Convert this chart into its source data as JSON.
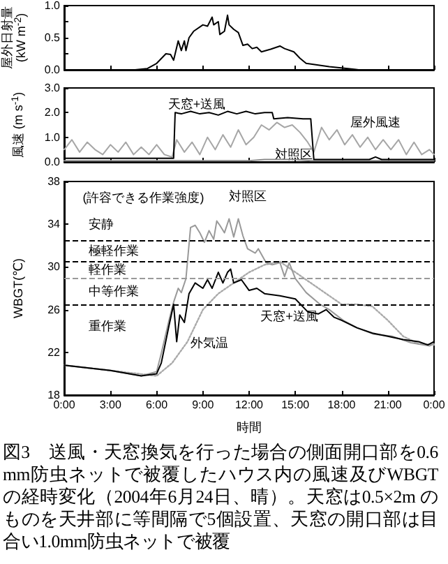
{
  "chart_data": [
    {
      "type": "line",
      "ylabel": "屋外日射量\n(kW m$^{-2}$)",
      "xlim": [
        0,
        24
      ],
      "xticks": [
        0,
        3,
        6,
        9,
        12,
        15,
        18,
        21,
        24
      ],
      "ylim": [
        0,
        1
      ],
      "yticks": [
        {
          "value": 0,
          "label": "0.0"
        },
        {
          "value": 0.25,
          "label": null
        },
        {
          "value": 0.5,
          "label": "0.5"
        },
        {
          "value": 0.75,
          "label": null
        },
        {
          "value": 1,
          "label": "1.0"
        }
      ],
      "tick_labels": "y",
      "grid": false,
      "legend": false,
      "marker": "none",
      "series": [
        {
          "color": "#000000",
          "x": [
            0,
            4.6,
            5.4,
            6.0,
            6.6,
            6.9,
            7.1,
            7.4,
            7.6,
            7.8,
            7.9,
            8.1,
            8.4,
            9.0,
            9.3,
            9.6,
            9.7,
            10.0,
            10.1,
            10.4,
            10.6,
            10.7,
            11.0,
            11.3,
            11.6,
            11.9,
            12.2,
            12.5,
            12.8,
            13.4,
            14.0,
            14.3,
            14.9,
            15.3,
            15.7,
            17.2,
            18.4,
            19.1,
            24
          ],
          "values": [
            0,
            0,
            0.02,
            0.1,
            0.25,
            0.24,
            0.15,
            0.45,
            0.3,
            0.45,
            0.3,
            0.5,
            0.6,
            0.7,
            0.68,
            0.82,
            0.7,
            0.75,
            0.55,
            0.6,
            0.85,
            0.7,
            0.63,
            0.58,
            0.38,
            0.4,
            0.33,
            0.35,
            0.28,
            0.32,
            0.37,
            0.33,
            0.28,
            0.18,
            0.1,
            0.05,
            0.02,
            0,
            0
          ]
        }
      ]
    },
    {
      "type": "line",
      "ylabel": "風速 (m s$^{-1}$)",
      "xlim": [
        0,
        24
      ],
      "xticks": [
        0,
        3,
        6,
        9,
        12,
        15,
        18,
        21,
        24
      ],
      "ylim": [
        0,
        3
      ],
      "yticks": [
        {
          "value": 0,
          "label": "0.0"
        },
        {
          "value": 1,
          "label": "1.0"
        },
        {
          "value": 2,
          "label": "2.0"
        },
        {
          "value": 3,
          "label": "3.0"
        }
      ],
      "tick_labels": "y",
      "grid": false,
      "legend": false,
      "marker": "none",
      "series": [
        {
          "name": "屋外風速",
          "color": "#a6a6a6",
          "x": [
            0,
            0.5,
            1,
            1.5,
            2,
            2.5,
            3,
            3.5,
            4,
            4.5,
            5,
            5.5,
            6,
            6.5,
            7,
            7.3,
            7.8,
            8.3,
            8.8,
            9.3,
            9.8,
            10.3,
            10.8,
            11.3,
            11.8,
            12.3,
            12.8,
            13.3,
            13.8,
            14.3,
            14.8,
            15.3,
            15.8,
            16.2,
            16.7,
            17.2,
            17.7,
            18.2,
            18.7,
            19.2,
            19.7,
            20.2,
            20.7,
            21.2,
            21.7,
            22.2,
            22.7,
            23.2,
            23.7,
            24
          ],
          "values": [
            0.5,
            0.9,
            0.4,
            0.8,
            0.5,
            0.3,
            0.7,
            0.4,
            0.8,
            0.3,
            0.6,
            0.3,
            0.7,
            0.3,
            0.2,
            0.9,
            0.4,
            0.8,
            0.3,
            1.0,
            0.5,
            1.1,
            0.6,
            1.3,
            0.7,
            1.0,
            1.5,
            1.3,
            1.6,
            1.4,
            1.5,
            1.2,
            0.8,
            0.4,
            1.4,
            0.9,
            1.3,
            0.7,
            1.1,
            0.6,
            1.0,
            0.5,
            0.9,
            0.5,
            0.9,
            0.3,
            0.8,
            0.3,
            0.5,
            0.3
          ]
        },
        {
          "name": "対照区",
          "color": "#8c8c8c",
          "x": [
            0,
            6,
            9,
            12,
            13,
            15,
            16,
            18,
            21,
            24
          ],
          "values": [
            0.05,
            0.05,
            0.05,
            0.05,
            0.1,
            0.1,
            0.05,
            0.05,
            0.05,
            0.05
          ]
        },
        {
          "name": "天窓+送風",
          "color": "#000000",
          "x": [
            0,
            7.1,
            7.2,
            7.6,
            8.2,
            8.8,
            9.4,
            10.0,
            10.6,
            11.2,
            11.8,
            12.4,
            13.0,
            13.5,
            13.6,
            14.5,
            15.5,
            16.0,
            16.2,
            18,
            19.8,
            20.2,
            20.6,
            24
          ],
          "values": [
            0.15,
            0.15,
            2.0,
            1.95,
            2.05,
            1.95,
            2.0,
            1.9,
            2.05,
            1.95,
            2.05,
            1.95,
            2.0,
            2.0,
            1.75,
            1.8,
            1.75,
            1.75,
            0.1,
            0.1,
            0.1,
            0.2,
            0.1,
            0.1
          ]
        }
      ]
    },
    {
      "type": "line",
      "xlabel": "時間",
      "ylabel": "WBGT(℃)",
      "xlim": [
        0,
        24
      ],
      "xticks": [
        {
          "value": 0,
          "label": "0:00"
        },
        {
          "value": 3,
          "label": "3:00"
        },
        {
          "value": 6,
          "label": "6:00"
        },
        {
          "value": 9,
          "label": "9:00"
        },
        {
          "value": 12,
          "label": "12:00"
        },
        {
          "value": 15,
          "label": "15:00"
        },
        {
          "value": 18,
          "label": "18:00"
        },
        {
          "value": 21,
          "label": "21:00"
        },
        {
          "value": 24,
          "label": "0:00"
        }
      ],
      "ylim": [
        18,
        38
      ],
      "yticks": [
        18,
        22,
        26,
        30,
        34,
        38
      ],
      "grid": false,
      "legend": false,
      "marker": "none",
      "ref_lines": [
        {
          "axis": "y",
          "value": 32.5,
          "color": "#000000",
          "line_style": "dashed"
        },
        {
          "axis": "y",
          "value": 30.5,
          "color": "#000000",
          "line_style": "dashed"
        },
        {
          "axis": "y",
          "value": 29.0,
          "color": "#999999",
          "line_style": "dashed"
        },
        {
          "axis": "y",
          "value": 26.5,
          "color": "#000000",
          "line_style": "dashed"
        }
      ],
      "annotations": [
        "(許容できる作業強度)",
        "安静",
        "極軽作業",
        "軽作業",
        "中等作業",
        "重作業",
        "図3　送風・天窓換気を行った場合の側面開口部を0.6 mm防虫ネットで被覆したハウス内の風速及びWBGTの経時変化（2004年6月24日、晴）。天窓は0.5×2m のものを天井部に等間隔で5個設置、天窓の開口部は目合い1.0mm防虫ネットで被覆"
      ],
      "series": [
        {
          "name": "外気温",
          "color": "#aaaaaa",
          "line_style": "dotted",
          "x": [
            0,
            3,
            6,
            7,
            8,
            9,
            10,
            11,
            12,
            13,
            14,
            15,
            16,
            17,
            18,
            19,
            20,
            21,
            22,
            23,
            24
          ],
          "values": [
            20.8,
            20.3,
            19.8,
            21.0,
            23.0,
            26.0,
            27.5,
            28.5,
            29.5,
            30.2,
            30.5,
            29.5,
            28.5,
            27.5,
            26.5,
            26.5,
            26.3,
            25.0,
            23.5,
            22.8,
            22.7
          ]
        },
        {
          "name": "対照区",
          "color": "#999999",
          "line_style": "solid",
          "x": [
            0,
            3,
            5,
            6,
            6.3,
            6.8,
            7.1,
            7.4,
            7.6,
            7.9,
            8.2,
            8.5,
            8.8,
            9.1,
            9.4,
            9.7,
            9.9,
            10.1,
            10.4,
            10.7,
            11.0,
            11.3,
            11.6,
            11.9,
            12.4,
            12.6,
            13.1,
            13.5,
            14.0,
            14.3,
            14.6,
            15.0,
            15.7,
            16.6,
            17.2,
            18.1,
            19.0,
            20.1,
            21.3,
            22.5,
            23.7,
            24
          ],
          "values": [
            20.8,
            20.3,
            19.8,
            20.2,
            21.9,
            25.0,
            26.7,
            28.0,
            27.6,
            28.9,
            33.7,
            33.9,
            33.2,
            32.3,
            33.4,
            32.6,
            34.3,
            33.9,
            33.2,
            34.5,
            32.8,
            34.5,
            32.9,
            31.7,
            31.3,
            31.7,
            30.4,
            30.2,
            30.4,
            29.1,
            30.4,
            28.9,
            27.6,
            26.5,
            26.0,
            25.0,
            24.3,
            23.7,
            23.5,
            22.9,
            22.6,
            22.8
          ]
        },
        {
          "name": "天窓+送風",
          "color": "#000000",
          "line_style": "solid",
          "x": [
            0,
            3,
            5,
            6,
            6.3,
            6.8,
            7.1,
            7.3,
            7.5,
            7.8,
            8.1,
            8.5,
            9.0,
            9.3,
            9.6,
            10.0,
            10.3,
            10.6,
            10.8,
            11.0,
            11.5,
            12.0,
            12.5,
            13.0,
            14.0,
            15.0,
            15.8,
            16.5,
            17.0,
            17.5,
            18.0,
            19.0,
            20.0,
            21.0,
            22.0,
            23.0,
            23.6,
            24
          ],
          "values": [
            20.8,
            20.3,
            19.8,
            20.0,
            21.0,
            24.5,
            26.5,
            23.0,
            25.5,
            24.8,
            27.5,
            28.5,
            28.0,
            28.8,
            28.0,
            29.5,
            28.5,
            29.5,
            29.8,
            28.5,
            28.8,
            27.8,
            28.0,
            27.5,
            27.3,
            27.0,
            25.8,
            25.6,
            26.0,
            25.3,
            25.0,
            24.3,
            23.8,
            23.5,
            23.2,
            23.0,
            22.7,
            23.0
          ]
        }
      ]
    }
  ]
}
